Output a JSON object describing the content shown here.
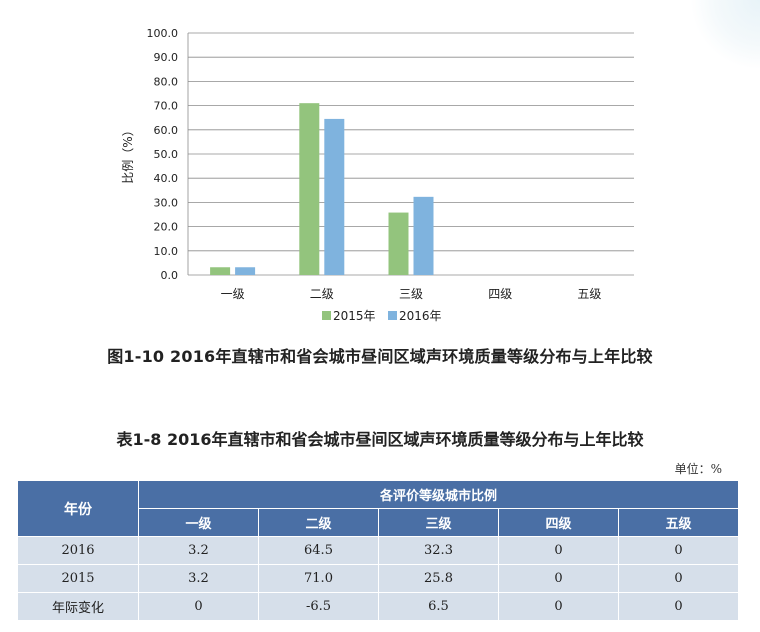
{
  "chart_data": {
    "type": "bar",
    "categories": [
      "一级",
      "二级",
      "三级",
      "四级",
      "五级"
    ],
    "series": [
      {
        "name": "2015年",
        "color": "#93c47d",
        "values": [
          3.2,
          71.0,
          25.8,
          0,
          0
        ]
      },
      {
        "name": "2016年",
        "color": "#7fb3de",
        "values": [
          3.2,
          64.5,
          32.3,
          0,
          0
        ]
      }
    ],
    "ylabel": "比例（%）",
    "ylim": [
      0,
      100
    ],
    "yticks": [
      "0.0",
      "10.0",
      "20.0",
      "30.0",
      "40.0",
      "50.0",
      "60.0",
      "70.0",
      "80.0",
      "90.0",
      "100.0"
    ],
    "grid": true,
    "legend": "bottom"
  },
  "figure_caption": "图1-10  2016年直辖市和省会城市昼间区域声环境质量等级分布与上年比较",
  "table": {
    "caption": "表1-8  2016年直辖市和省会城市昼间区域声环境质量等级分布与上年比较",
    "unit": "单位：%",
    "row_header": "年份",
    "group_header": "各评价等级城市比例",
    "columns": [
      "一级",
      "二级",
      "三级",
      "四级",
      "五级"
    ],
    "rows": [
      {
        "label": "2016",
        "values": [
          "3.2",
          "64.5",
          "32.3",
          "0",
          "0"
        ]
      },
      {
        "label": "2015",
        "values": [
          "3.2",
          "71.0",
          "25.8",
          "0",
          "0"
        ]
      },
      {
        "label": "年际变化",
        "values": [
          "0",
          "-6.5",
          "6.5",
          "0",
          "0"
        ]
      }
    ]
  }
}
